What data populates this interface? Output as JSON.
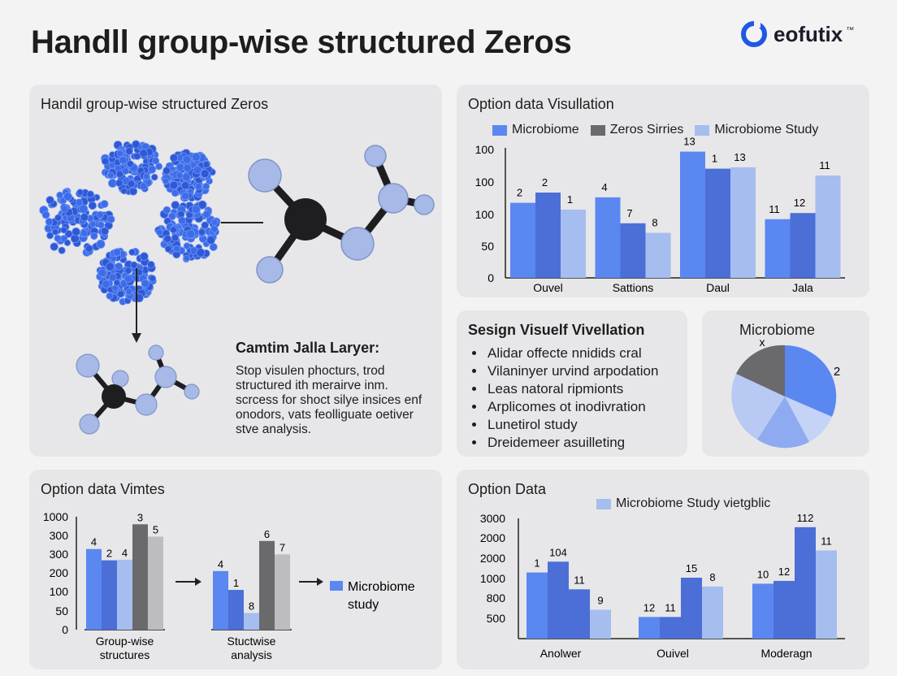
{
  "page": {
    "title": "Handll group-wise structured Zeros",
    "logo_text": "eofutix",
    "logo_mark": "™"
  },
  "colors": {
    "blue": "#5b87f0",
    "dark_blue": "#4b6fd6",
    "light_blue": "#a6bdef",
    "gray": "#6a6a6c",
    "light_gray": "#bdbdbf",
    "molecule_ball": "#a7b9e6",
    "molecule_core": "#1e1e20",
    "cluster_blue": "#3d6ce8"
  },
  "panel_molecule": {
    "title": "Handil group-wise structured Zeros",
    "caption_title": "Camtim Jalla Laryer:",
    "caption_body": "Stop visulen phocturs, trod structured ith merairve inm. scrcess for shoct silye insices enf onodors, vats feolliguate oetiver stve analysis."
  },
  "panel_bullets": {
    "title": "Sesign Visuelf Vivellation",
    "items": [
      "Alidar offecte nnidids cral",
      "Vilaninyer urvind arpodation",
      "Leas natoral ripmionts",
      "Arplicomes ot inodivration",
      "Lunetirol study",
      "Dreidemeer asuilleting"
    ]
  },
  "panel_pie": {
    "title": "Microbiome",
    "labels": [
      "x",
      "2"
    ]
  },
  "chart_data": [
    {
      "id": "option-data-visullation",
      "type": "bar",
      "title": "Option data Visullation",
      "categories": [
        "Ouvel",
        "Sattions",
        "Daul",
        "Jala"
      ],
      "series": [
        {
          "name": "Microbiome",
          "values": [
            110,
            118,
            185,
            86
          ],
          "labels": [
            "2",
            "4",
            "13",
            "11"
          ],
          "color": "#5b87f0"
        },
        {
          "name": "Zeros Sirries",
          "values": [
            125,
            80,
            160,
            95
          ],
          "labels": [
            "2",
            "7",
            "1",
            "12"
          ],
          "color": "#4b6fd6"
        },
        {
          "name": "Microbiome Study",
          "values": [
            100,
            66,
            162,
            150
          ],
          "labels": [
            "1",
            "8",
            "13",
            "11"
          ],
          "color": "#a6bdef"
        }
      ],
      "yticks": [
        "0",
        "50",
        "100",
        "100",
        "100"
      ],
      "ylim": [
        0,
        200
      ]
    },
    {
      "id": "option-data-vimtes",
      "type": "bar",
      "title": "Option data Vimtes",
      "groups": [
        {
          "label": "Group-wise structures",
          "bars": [
            {
              "value": 300,
              "label": "4",
              "color": "#5b87f0"
            },
            {
              "value": 258,
              "label": "2",
              "color": "#4b6fd6"
            },
            {
              "value": 260,
              "label": "4",
              "color": "#a6bdef"
            },
            {
              "value": 392,
              "label": "3",
              "color": "#6a6a6c"
            },
            {
              "value": 346,
              "label": "5",
              "color": "#bdbdbf"
            }
          ]
        },
        {
          "label": "Stuctwise analysis",
          "bars": [
            {
              "value": 218,
              "label": "4",
              "color": "#5b87f0"
            },
            {
              "value": 148,
              "label": "1",
              "color": "#4b6fd6"
            },
            {
              "value": 62,
              "label": "8",
              "color": "#a6bdef"
            },
            {
              "value": 330,
              "label": "6",
              "color": "#6a6a6c"
            },
            {
              "value": 280,
              "label": "7",
              "color": "#bdbdbf"
            }
          ]
        }
      ],
      "legend": "Microbiome study",
      "yticks": [
        "0",
        "50",
        "100",
        "200",
        "300",
        "300",
        "1000"
      ]
    },
    {
      "id": "option-data",
      "type": "bar",
      "title": "Option Data",
      "legend": "Microbiome Study vietgblic",
      "categories": [
        "Anolwer",
        "Ouivel",
        "Moderagn"
      ],
      "groups": [
        {
          "values": [
            1650,
            1920,
            1230,
            720
          ],
          "labels": [
            "1",
            "104",
            "11",
            "9"
          ]
        },
        {
          "values": [
            540,
            540,
            1520,
            1300
          ],
          "labels": [
            "12",
            "11",
            "15",
            "8"
          ]
        },
        {
          "values": [
            1370,
            1440,
            2780,
            2200
          ],
          "labels": [
            "10",
            "12",
            "112",
            "11"
          ]
        }
      ],
      "bar_colors": [
        "#5b87f0",
        "#4b6fd6",
        "#4b6fd6",
        "#a6bdef"
      ],
      "yticks": [
        "500",
        "800",
        "1000",
        "2000",
        "2000",
        "3000"
      ]
    }
  ]
}
